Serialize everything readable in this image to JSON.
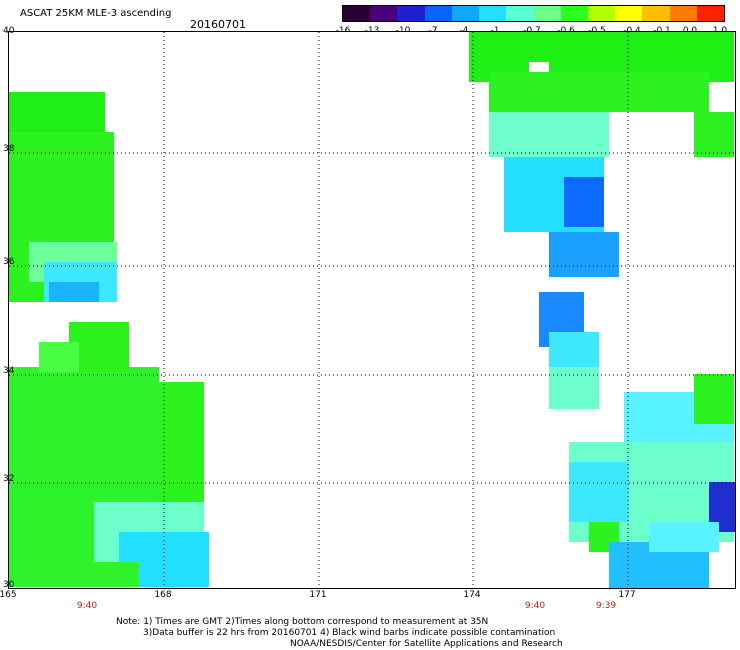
{
  "header": {
    "title": "ASCAT 25KM MLE-3 ascending",
    "date": "20160701"
  },
  "colorbar": {
    "colors": [
      "#2b0033",
      "#4b0079",
      "#1f1fcf",
      "#0b63ff",
      "#0fa7ff",
      "#23dfff",
      "#59ffd2",
      "#6dff87",
      "#29ff1c",
      "#b1ff00",
      "#ffff00",
      "#ffbe00",
      "#ff7a00",
      "#ff2200"
    ],
    "labels": [
      "-16",
      "-13",
      "-10",
      "-7",
      "-4",
      "-1",
      "-0.7",
      "-0.6",
      "-0.5",
      "-0.4",
      "-0.1",
      "0.0",
      "1.0"
    ]
  },
  "map": {
    "lat_labels": [
      "40",
      "38",
      "36",
      "34",
      "32",
      "30"
    ],
    "lon_labels": [
      "165",
      "168",
      "171",
      "174",
      "177"
    ],
    "time_labels": [
      "9:40",
      "9:40",
      "9:39"
    ]
  },
  "notes": {
    "line1": "Note: 1) Times are GMT 2)Times along bottom correspond to measurement at 35N",
    "line2": "3)Data buffer is 22 hrs from 20160701 4) Black wind barbs indicate possible contamination",
    "line3": "NOAA/NESDIS/Center for Satellite Applications and Research"
  }
}
